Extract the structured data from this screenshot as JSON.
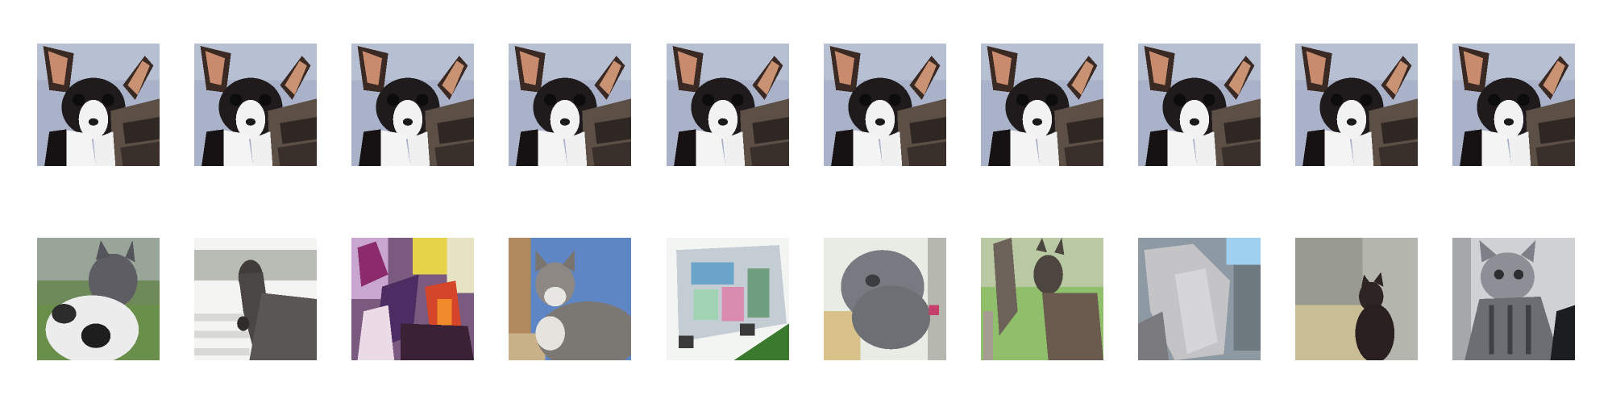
{
  "figure": {
    "rows": [
      {
        "name": "query-row",
        "images": [
          {
            "subject": "chihuahua-dog"
          },
          {
            "subject": "chihuahua-dog"
          },
          {
            "subject": "chihuahua-dog"
          },
          {
            "subject": "chihuahua-dog"
          },
          {
            "subject": "chihuahua-dog"
          },
          {
            "subject": "chihuahua-dog"
          },
          {
            "subject": "chihuahua-dog"
          },
          {
            "subject": "chihuahua-dog"
          },
          {
            "subject": "chihuahua-dog"
          },
          {
            "subject": "chihuahua-dog"
          }
        ]
      },
      {
        "name": "result-row",
        "images": [
          {
            "subject": "cat-white-black"
          },
          {
            "subject": "horse-fence"
          },
          {
            "subject": "colorful-painting"
          },
          {
            "subject": "cat-blue-wall"
          },
          {
            "subject": "truck"
          },
          {
            "subject": "grey-cat"
          },
          {
            "subject": "deer-grass"
          },
          {
            "subject": "white-horse"
          },
          {
            "subject": "dark-cat"
          },
          {
            "subject": "tabby-kitten"
          }
        ]
      }
    ]
  }
}
